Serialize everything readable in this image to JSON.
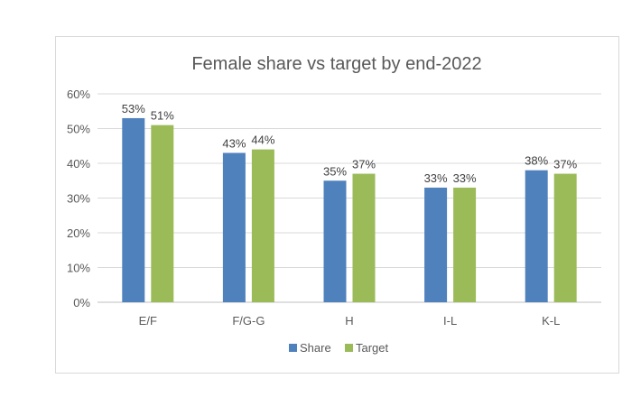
{
  "chart_data": {
    "type": "bar",
    "title": "Female share vs target by end-2022",
    "categories": [
      "E/F",
      "F/G-G",
      "H",
      "I-L",
      "K-L"
    ],
    "series": [
      {
        "name": "Share",
        "values": [
          53,
          43,
          35,
          33,
          38
        ],
        "color": "#4f81bd",
        "labels": [
          "53%",
          "43%",
          "35%",
          "33%",
          "38%"
        ]
      },
      {
        "name": "Target",
        "values": [
          51,
          44,
          37,
          33,
          37
        ],
        "color": "#9bbb59",
        "labels": [
          "51%",
          "44%",
          "37%",
          "33%",
          "37%"
        ]
      }
    ],
    "ylim": [
      0,
      60
    ],
    "yticks": [
      0,
      10,
      20,
      30,
      40,
      50,
      60
    ],
    "ytick_labels": [
      "0%",
      "10%",
      "20%",
      "30%",
      "40%",
      "50%",
      "60%"
    ],
    "grid": true,
    "legend_position": "bottom"
  }
}
